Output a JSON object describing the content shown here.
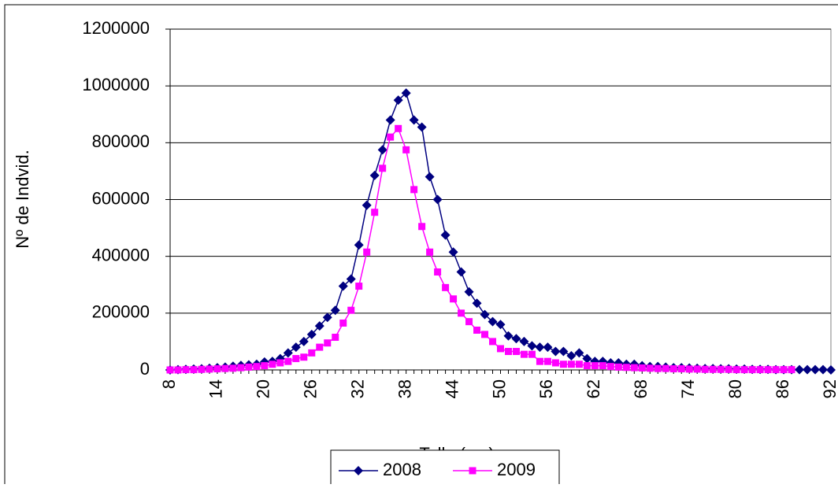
{
  "chart_data": {
    "type": "line",
    "x_label": "Talla (cm)",
    "y_label": "Nº de Indvid.",
    "x": [
      8,
      9,
      10,
      11,
      12,
      13,
      14,
      15,
      16,
      17,
      18,
      19,
      20,
      21,
      22,
      23,
      24,
      25,
      26,
      27,
      28,
      29,
      30,
      31,
      32,
      33,
      34,
      35,
      36,
      37,
      38,
      39,
      40,
      41,
      42,
      43,
      44,
      45,
      46,
      47,
      48,
      49,
      50,
      51,
      52,
      53,
      54,
      55,
      56,
      57,
      58,
      59,
      60,
      61,
      62,
      63,
      64,
      65,
      66,
      67,
      68,
      69,
      70,
      71,
      72,
      73,
      74,
      75,
      76,
      77,
      78,
      79,
      80,
      81,
      82,
      83,
      84,
      85,
      86,
      87,
      88,
      89,
      90,
      91,
      92
    ],
    "series": [
      {
        "name": "2008",
        "color": "#000080",
        "marker": "diamond",
        "values": [
          0,
          1000,
          2000,
          3000,
          4000,
          6000,
          8000,
          10000,
          13000,
          16000,
          18000,
          20000,
          28000,
          30000,
          40000,
          60000,
          80000,
          100000,
          125000,
          155000,
          185000,
          210000,
          295000,
          320000,
          440000,
          580000,
          685000,
          775000,
          880000,
          950000,
          975000,
          880000,
          855000,
          680000,
          600000,
          475000,
          415000,
          345000,
          275000,
          235000,
          195000,
          170000,
          160000,
          120000,
          110000,
          100000,
          85000,
          80000,
          80000,
          65000,
          65000,
          50000,
          60000,
          40000,
          30000,
          30000,
          25000,
          25000,
          20000,
          20000,
          15000,
          12000,
          12000,
          10000,
          8000,
          8000,
          7000,
          6000,
          5000,
          5000,
          4000,
          4000,
          3000,
          3000,
          2000,
          2000,
          2000,
          1000,
          1000,
          1000,
          1000,
          1000,
          1000,
          1000,
          0
        ]
      },
      {
        "name": "2009",
        "color": "#FF00FF",
        "marker": "square",
        "values": [
          0,
          0,
          1000,
          1000,
          2000,
          3000,
          4000,
          5000,
          6000,
          8000,
          10000,
          12000,
          15000,
          20000,
          25000,
          30000,
          40000,
          45000,
          60000,
          80000,
          95000,
          115000,
          165000,
          210000,
          295000,
          415000,
          555000,
          710000,
          820000,
          850000,
          775000,
          635000,
          505000,
          415000,
          345000,
          290000,
          250000,
          200000,
          170000,
          140000,
          125000,
          100000,
          75000,
          65000,
          65000,
          55000,
          55000,
          30000,
          30000,
          25000,
          20000,
          20000,
          20000,
          15000,
          15000,
          15000,
          12000,
          10000,
          9000,
          8000,
          7000,
          6000,
          5000,
          5000,
          4000,
          4000,
          3000,
          3000,
          2000,
          2000,
          2000,
          2000,
          1000,
          1000,
          1000,
          1000,
          1000,
          1000,
          1000,
          1000,
          null,
          null,
          null,
          null,
          null
        ]
      }
    ],
    "xlim": [
      8,
      92
    ],
    "xticks": [
      8,
      14,
      20,
      26,
      32,
      38,
      44,
      50,
      56,
      62,
      68,
      74,
      80,
      86,
      92
    ],
    "ylim": [
      0,
      1200000
    ],
    "yticks": [
      0,
      200000,
      400000,
      600000,
      800000,
      1000000,
      1200000
    ],
    "grid": true,
    "legend": "bottom"
  }
}
